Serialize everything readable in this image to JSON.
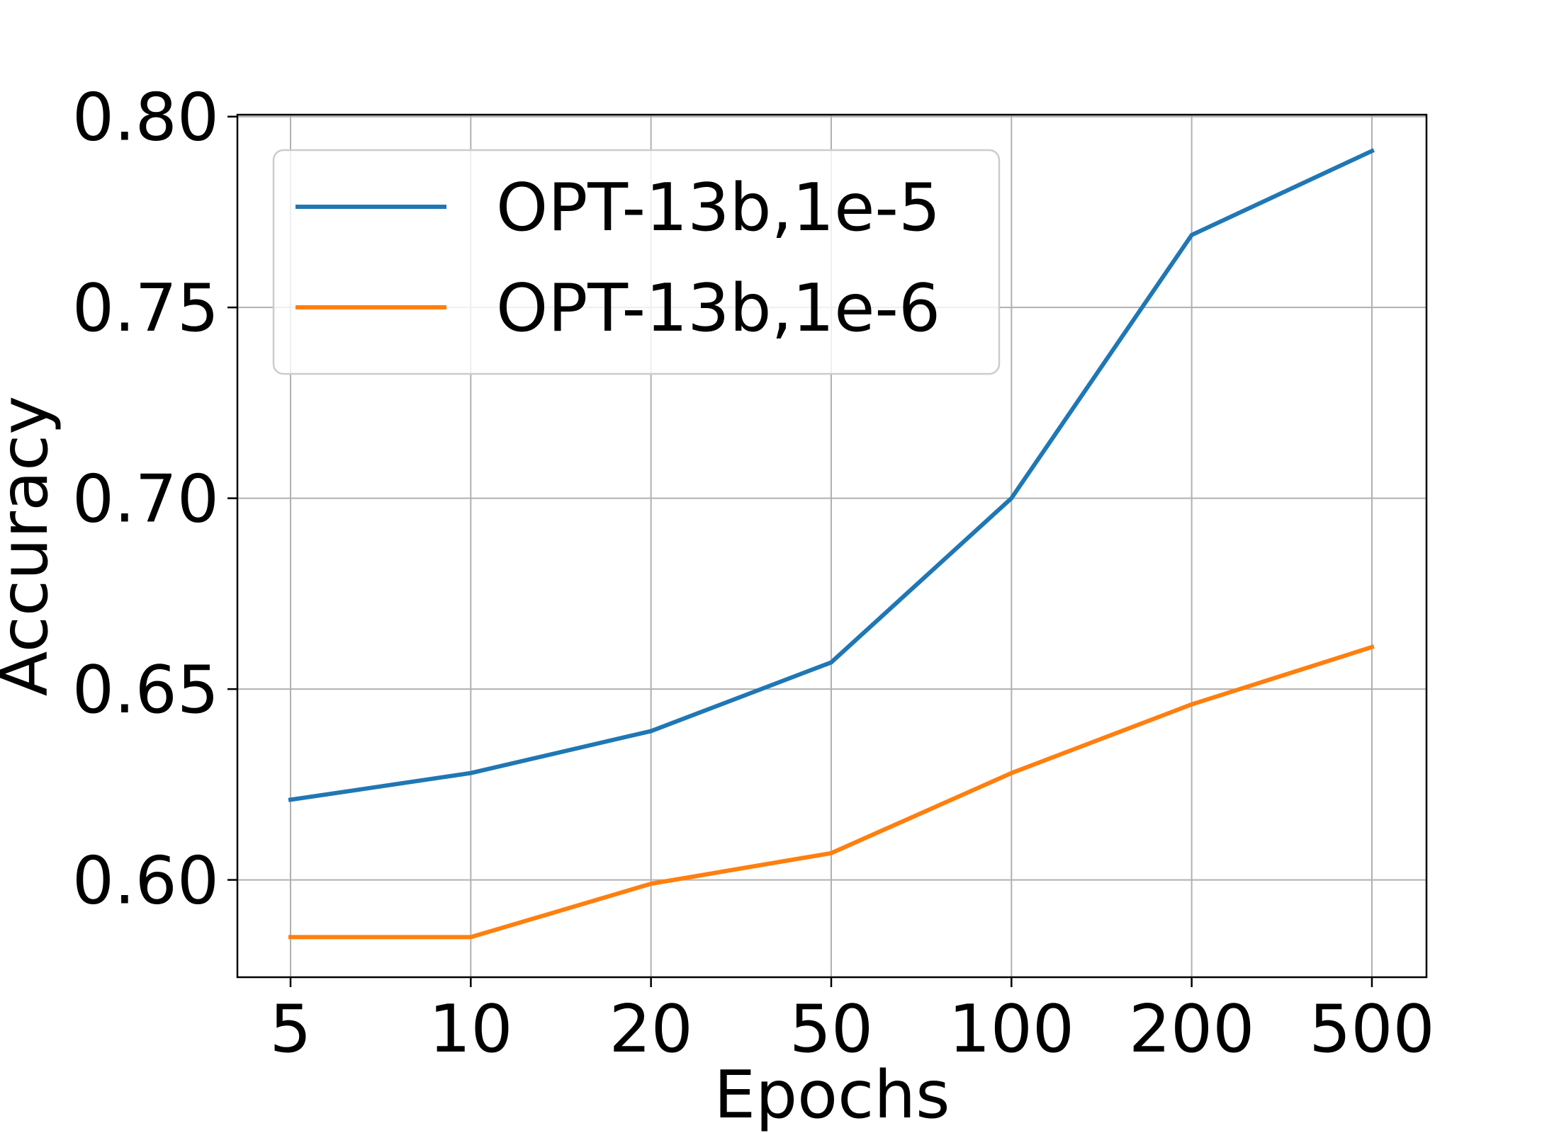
{
  "chart_data": {
    "type": "line",
    "categories": [
      "5",
      "10",
      "20",
      "50",
      "100",
      "200",
      "500"
    ],
    "series": [
      {
        "name": "OPT-13b,1e-5",
        "color": "#1f77b4",
        "values": [
          0.621,
          0.628,
          0.639,
          0.657,
          0.7,
          0.769,
          0.791
        ]
      },
      {
        "name": "OPT-13b,1e-6",
        "color": "#ff7f0e",
        "values": [
          0.585,
          0.585,
          0.599,
          0.607,
          0.628,
          0.646,
          0.661
        ]
      }
    ],
    "xlabel": "Epochs",
    "ylabel": "Accuracy",
    "ylim": [
      0.5745,
      0.8005
    ],
    "yticks": [
      "0.60",
      "0.65",
      "0.70",
      "0.75",
      "0.80"
    ],
    "grid": true,
    "legend": "top-left"
  }
}
